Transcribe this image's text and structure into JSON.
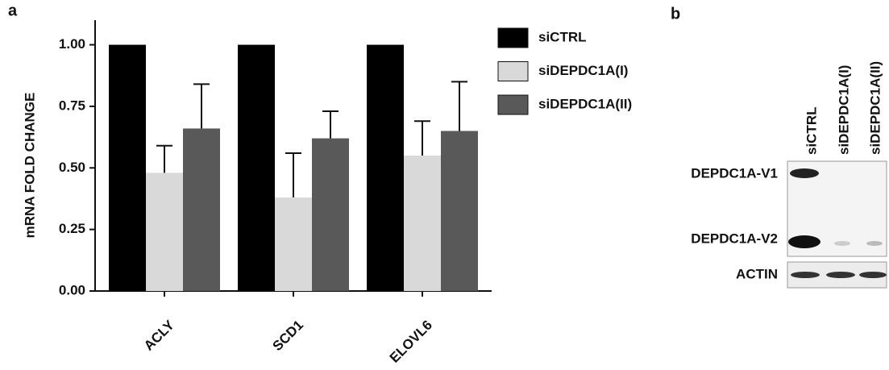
{
  "chart_data": {
    "type": "bar",
    "panel_label": "a",
    "y_label": "mRNA FOLD CHANGE",
    "categories": [
      "ACLY",
      "SCD1",
      "ELOVL6"
    ],
    "series": [
      {
        "name": "siCTRL",
        "color": "#000000",
        "values": [
          1.0,
          1.0,
          1.0
        ]
      },
      {
        "name": "siDEPDC1A(I)",
        "color": "#d9d9d9",
        "values": [
          0.48,
          0.38,
          0.55
        ],
        "errors": [
          0.11,
          0.18,
          0.14
        ]
      },
      {
        "name": "siDEPDC1A(II)",
        "color": "#595959",
        "values": [
          0.66,
          0.62,
          0.65
        ],
        "errors": [
          0.18,
          0.11,
          0.2
        ]
      }
    ],
    "ylim": [
      0,
      1.1
    ],
    "yticks": [
      {
        "value": 0,
        "label": "0.00"
      },
      {
        "value": 0.25,
        "label": "0.25"
      },
      {
        "value": 0.5,
        "label": "0.50"
      },
      {
        "value": 0.75,
        "label": "0.75"
      },
      {
        "value": 1,
        "label": "1.00"
      }
    ],
    "legend": "top-right"
  },
  "blot": {
    "panel_label": "b",
    "lanes": [
      "siCTRL",
      "siDEPDC1A(I)",
      "siDEPDC1A(II)"
    ],
    "bands": [
      "DEPDC1A-V1",
      "DEPDC1A-V2",
      "ACTIN"
    ]
  }
}
